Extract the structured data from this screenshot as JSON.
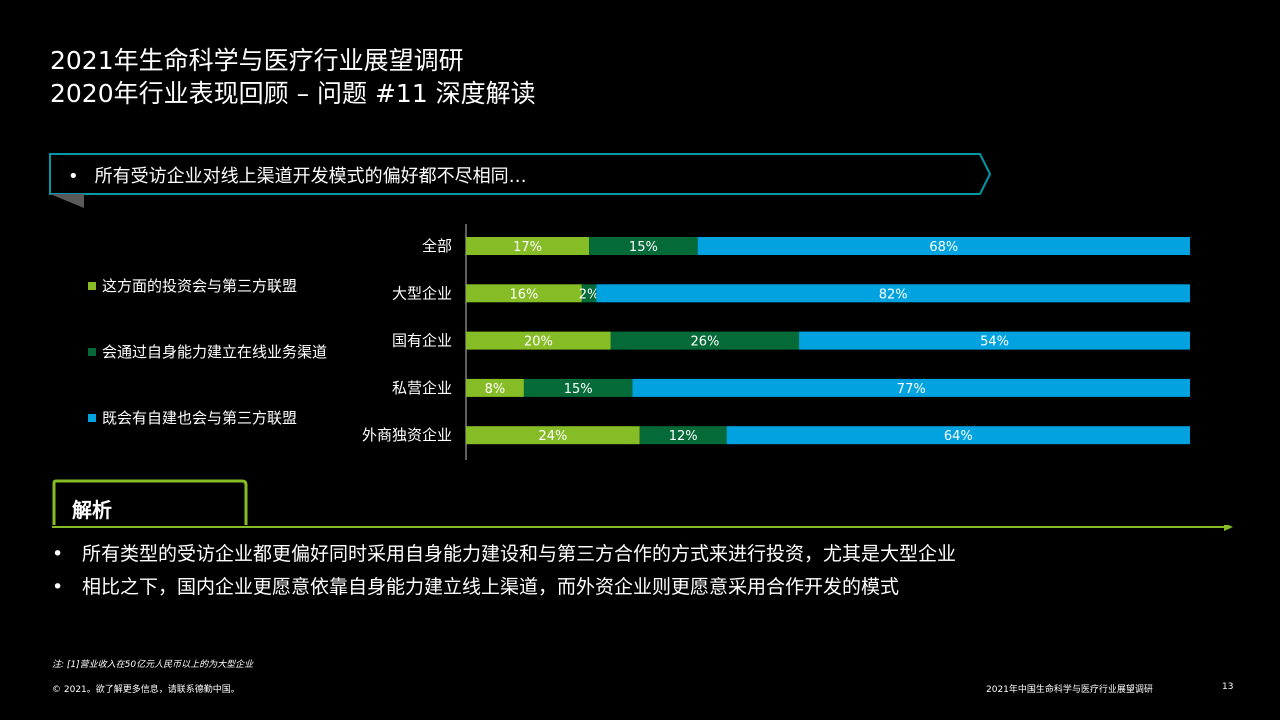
{
  "title": {
    "line1": "2021年生命科学与医疗行业展望调研",
    "line2": "2020年行业表现回顾 – 问题 #11 深度解读"
  },
  "callout": {
    "bullet": "•",
    "text": "所有受访企业对线上渠道开发模式的偏好都不尽相同…"
  },
  "chart_data": {
    "type": "bar",
    "orientation": "horizontal",
    "stacked": true,
    "categories": [
      "全部",
      "大型企业",
      "国有企业",
      "私营企业",
      "外商独资企业"
    ],
    "series": [
      {
        "name": "这方面的投资会与第三方联盟",
        "color": "#86bc25",
        "values": [
          17,
          16,
          20,
          8,
          24
        ],
        "labels": [
          "17%",
          "16%",
          "20%",
          "8%",
          "24%"
        ]
      },
      {
        "name": "会通过自身能力建立在线业务渠道",
        "color": "#046a38",
        "values": [
          15,
          2,
          26,
          15,
          12
        ],
        "labels": [
          "15%",
          "2%",
          "26%",
          "15%",
          "12%"
        ]
      },
      {
        "name": "既会有自建也会与第三方联盟",
        "color": "#00a3e0",
        "values": [
          68,
          82,
          54,
          77,
          64
        ],
        "labels": [
          "68%",
          "82%",
          "54%",
          "77%",
          "64%"
        ]
      }
    ],
    "xlim": [
      0,
      100
    ],
    "legend": "left"
  },
  "analysis": {
    "title": "解析",
    "bullet": "•",
    "points": [
      "所有类型的受访企业都更偏好同时采用自身能力建设和与第三方合作的方式来进行投资，尤其是大型企业",
      "相比之下，国内企业更愿意依靠自身能力建立线上渠道，而外资企业则更愿意采用合作开发的模式"
    ]
  },
  "note": "注: [1]营业收入在50亿元人民币以上的为大型企业",
  "footer": {
    "left": "© 2021。欲了解更多信息，请联系德勤中国。",
    "right": "2021年中国生命科学与医疗行业展望调研",
    "page": "13"
  },
  "colors": {
    "accent_green": "#86bc25",
    "dark_green": "#046a38",
    "blue": "#00a3e0",
    "teal_border": "#0097a9"
  }
}
